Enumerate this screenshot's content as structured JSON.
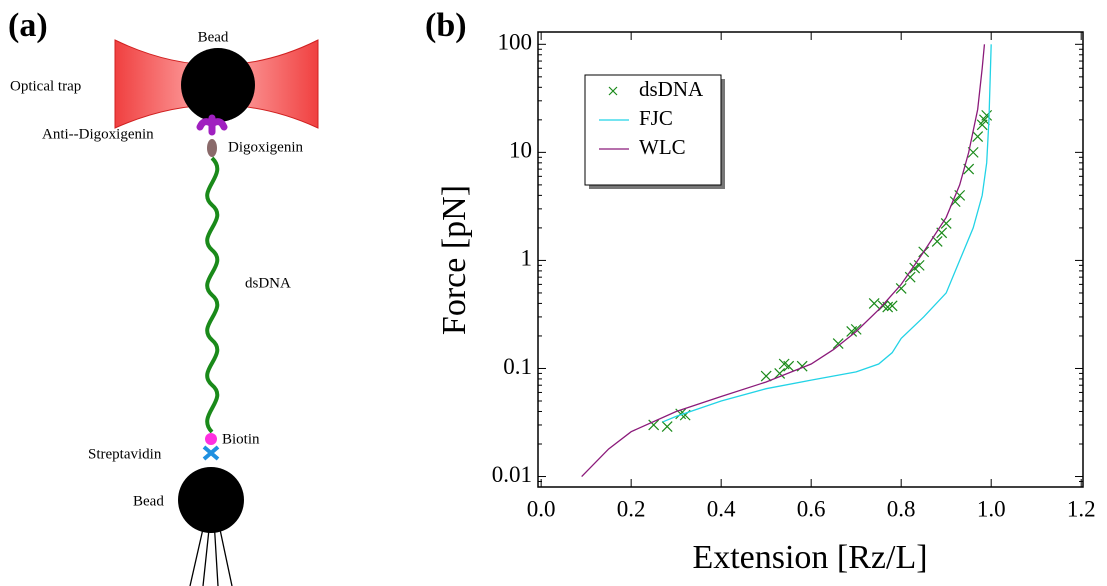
{
  "diagram": {
    "panel_label": "(a)",
    "labels": {
      "top_bead": "Bead",
      "trap": "Optical trap",
      "antibody": "Anti--Digoxigenin",
      "digoxigenin": "Digoxigenin",
      "dna": "dsDNA",
      "biotin": "Biotin",
      "streptavidin": "Streptavidin",
      "bottom_bead": "Bead"
    }
  },
  "chart_data": {
    "type": "line",
    "panel_label": "(b)",
    "x_label": "Extension [Rz/L]",
    "y_label": "Force [pN]",
    "xlim": [
      -0.007,
      1.204
    ],
    "ylim": [
      0.008,
      130
    ],
    "log_y": true,
    "xticks": [
      {
        "value": 0,
        "label": "0.0"
      },
      0.2,
      0.4,
      0.6,
      0.8,
      {
        "value": 1,
        "label": "1.0"
      },
      1.2
    ],
    "yticks": [
      0.01,
      0.1,
      1,
      10,
      100
    ],
    "legend": "upper left",
    "series": [
      {
        "name": "dsDNA",
        "type": "scatter",
        "color": "#1a8a1a",
        "x": [
          0.25,
          0.28,
          0.31,
          0.32,
          0.5,
          0.53,
          0.54,
          0.55,
          0.58,
          0.66,
          0.69,
          0.7,
          0.74,
          0.76,
          0.77,
          0.78,
          0.8,
          0.82,
          0.83,
          0.84,
          0.85,
          0.88,
          0.89,
          0.9,
          0.92,
          0.93,
          0.95,
          0.96,
          0.97,
          0.98,
          0.985,
          0.99
        ],
        "values": [
          0.03,
          0.029,
          0.038,
          0.037,
          0.085,
          0.09,
          0.11,
          0.105,
          0.105,
          0.17,
          0.22,
          0.23,
          0.4,
          0.38,
          0.37,
          0.38,
          0.55,
          0.7,
          0.85,
          0.9,
          1.2,
          1.5,
          1.8,
          2.2,
          3.5,
          4,
          7,
          10,
          14,
          18,
          20,
          22
        ]
      },
      {
        "name": "FJC",
        "type": "line",
        "color": "#22d3e6",
        "x": [
          0.27,
          0.3,
          0.4,
          0.5,
          0.6,
          0.7,
          0.75,
          0.78,
          0.8,
          0.85,
          0.9,
          0.93,
          0.96,
          0.98,
          0.99,
          0.995,
          1.0
        ],
        "values": [
          0.032,
          0.036,
          0.05,
          0.065,
          0.078,
          0.093,
          0.11,
          0.14,
          0.19,
          0.3,
          0.5,
          1,
          2,
          4,
          8,
          20,
          100
        ]
      },
      {
        "name": "WLC",
        "type": "line",
        "color": "#8b1a7a",
        "x": [
          0.09,
          0.15,
          0.2,
          0.3,
          0.4,
          0.5,
          0.6,
          0.65,
          0.7,
          0.75,
          0.8,
          0.85,
          0.9,
          0.93,
          0.95,
          0.97,
          0.98,
          0.985
        ],
        "values": [
          0.01,
          0.018,
          0.026,
          0.04,
          0.055,
          0.075,
          0.11,
          0.15,
          0.22,
          0.35,
          0.6,
          1.2,
          2.5,
          5,
          10,
          25,
          60,
          100
        ]
      }
    ]
  }
}
